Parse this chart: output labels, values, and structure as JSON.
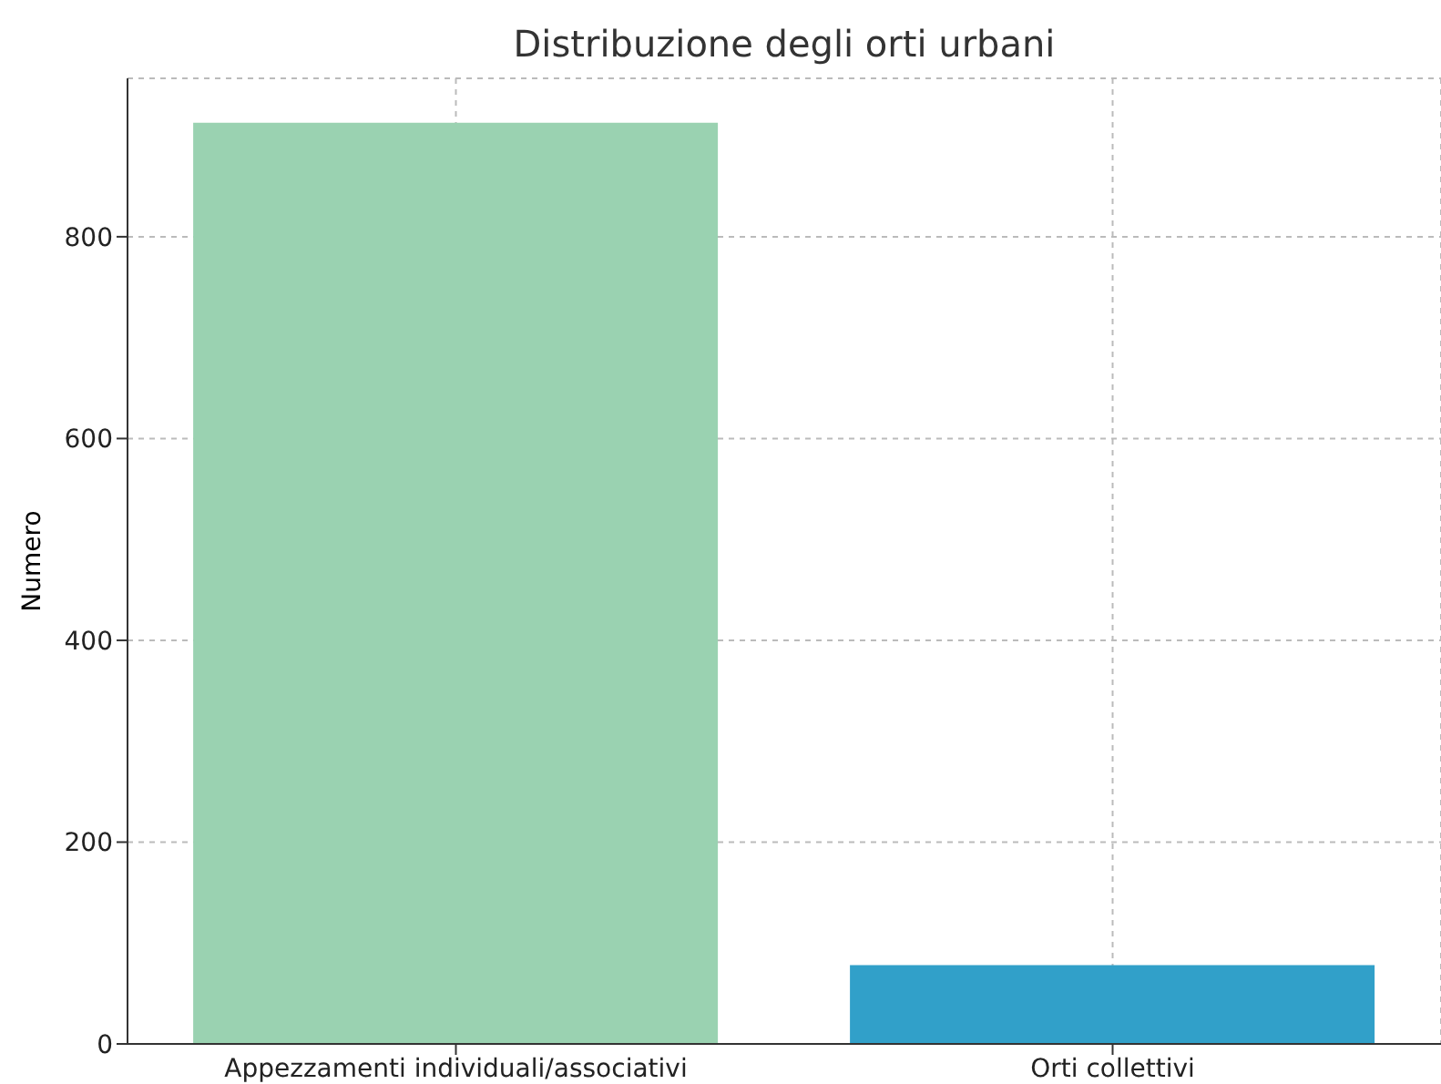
{
  "chart_data": {
    "type": "bar",
    "title": "Distribuzione degli orti urbani",
    "ylabel": "Numero",
    "categories": [
      "Appezzamenti individuali/associativi",
      "Orti collettivi"
    ],
    "values": [
      913,
      78
    ],
    "colors": [
      "#9ad2b1",
      "#31a0c9"
    ],
    "ylim": [
      0,
      957
    ],
    "yticks": [
      0,
      200,
      400,
      600,
      800
    ],
    "grid": true
  }
}
